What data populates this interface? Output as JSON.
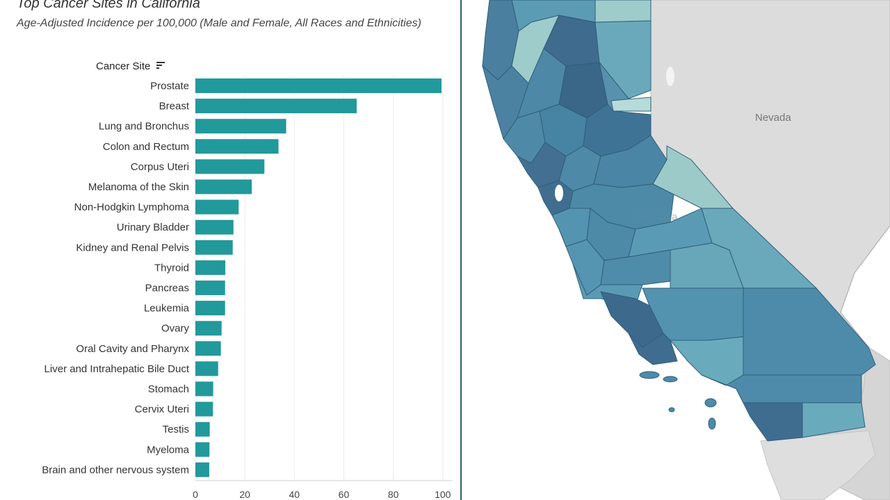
{
  "header": {
    "title": "Top Cancer Sites in California",
    "subtitle": "Age-Adjusted Incidence per 100,000 (Male and Female, All Races and Ethnicities)",
    "field_label": "Cancer Site"
  },
  "icons": {
    "sort": "sort-descending-icon"
  },
  "colors": {
    "bar": "#22999b",
    "divider": "#2c5d6e",
    "state_fill_other": "#dcdcdc",
    "county_dark": "#3f6d8c",
    "county_mid": "#4d88a4",
    "county_light": "#6aaabc",
    "county_pale": "#9fcccb"
  },
  "chart_data": {
    "type": "bar",
    "orientation": "horizontal",
    "categories": [
      "Prostate",
      "Breast",
      "Lung and Bronchus",
      "Colon and Rectum",
      "Corpus Uteri",
      "Melanoma of the Skin",
      "Non-Hodgkin Lymphoma",
      "Urinary Bladder",
      "Kidney and Renal Pelvis",
      "Thyroid",
      "Pancreas",
      "Leukemia",
      "Ovary",
      "Oral Cavity and Pharynx",
      "Liver and Intrahepatic Bile Duct",
      "Stomach",
      "Cervix Uteri",
      "Testis",
      "Myeloma",
      "Brain and other nervous system"
    ],
    "values": [
      99.5,
      65.2,
      36.7,
      33.6,
      27.9,
      22.8,
      17.5,
      15.4,
      15.1,
      12.1,
      12.0,
      12.0,
      10.6,
      10.3,
      9.2,
      7.2,
      7.1,
      5.8,
      5.7,
      5.6
    ],
    "xlim": [
      0,
      104
    ],
    "xticks": [
      0,
      20,
      40,
      60,
      80,
      100
    ],
    "grid": true,
    "legend": "none"
  },
  "map": {
    "labels": {
      "neighbor_state": "Nevada",
      "state": "California"
    }
  }
}
